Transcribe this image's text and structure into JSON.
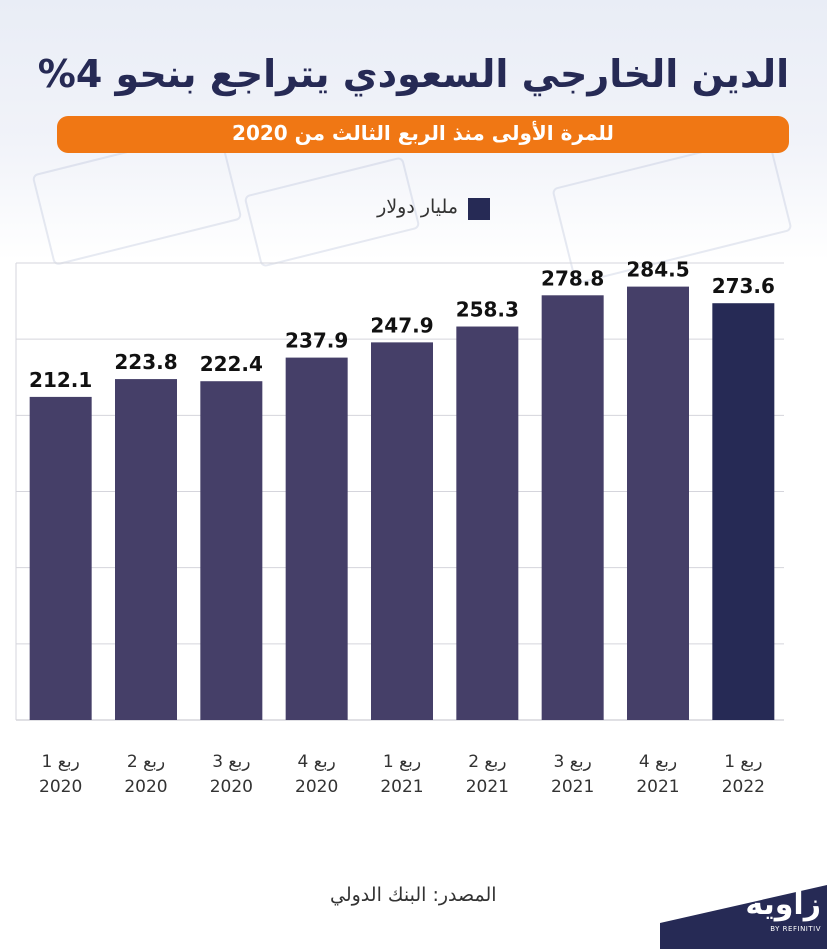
{
  "header": {
    "title": "الدين الخارجي السعودي يتراجع بنحو 4%",
    "subtitle": "للمرة الأولى منذ الربع الثالث من 2020"
  },
  "legend": {
    "label": "مليار دولار",
    "color": "#262a55"
  },
  "source": "المصدر: البنك الدولي",
  "logo": {
    "word": "زاوية",
    "sub": "BY REFINITIV"
  },
  "colors": {
    "bar": "#453f68",
    "bar_highlight": "#262a55",
    "accent": "#f07714",
    "title": "#262a55"
  },
  "chart_data": {
    "type": "bar",
    "categories": [
      [
        "ربع 1",
        "2020"
      ],
      [
        "ربع 2",
        "2020"
      ],
      [
        "ربع 3",
        "2020"
      ],
      [
        "ربع 4",
        "2020"
      ],
      [
        "ربع 1",
        "2021"
      ],
      [
        "ربع 2",
        "2021"
      ],
      [
        "ربع 3",
        "2021"
      ],
      [
        "ربع 4",
        "2021"
      ],
      [
        "ربع 1",
        "2022"
      ]
    ],
    "values": [
      212.1,
      223.8,
      222.4,
      237.9,
      247.9,
      258.3,
      278.8,
      284.5,
      273.6
    ],
    "value_labels": [
      "212.1",
      "223.8",
      "222.4",
      "237.9",
      "247.9",
      "258.3",
      "278.8",
      "284.5",
      "273.6"
    ],
    "highlight_index": 8,
    "ylim": [
      0,
      300
    ],
    "grid": true,
    "legend_position": "top"
  }
}
